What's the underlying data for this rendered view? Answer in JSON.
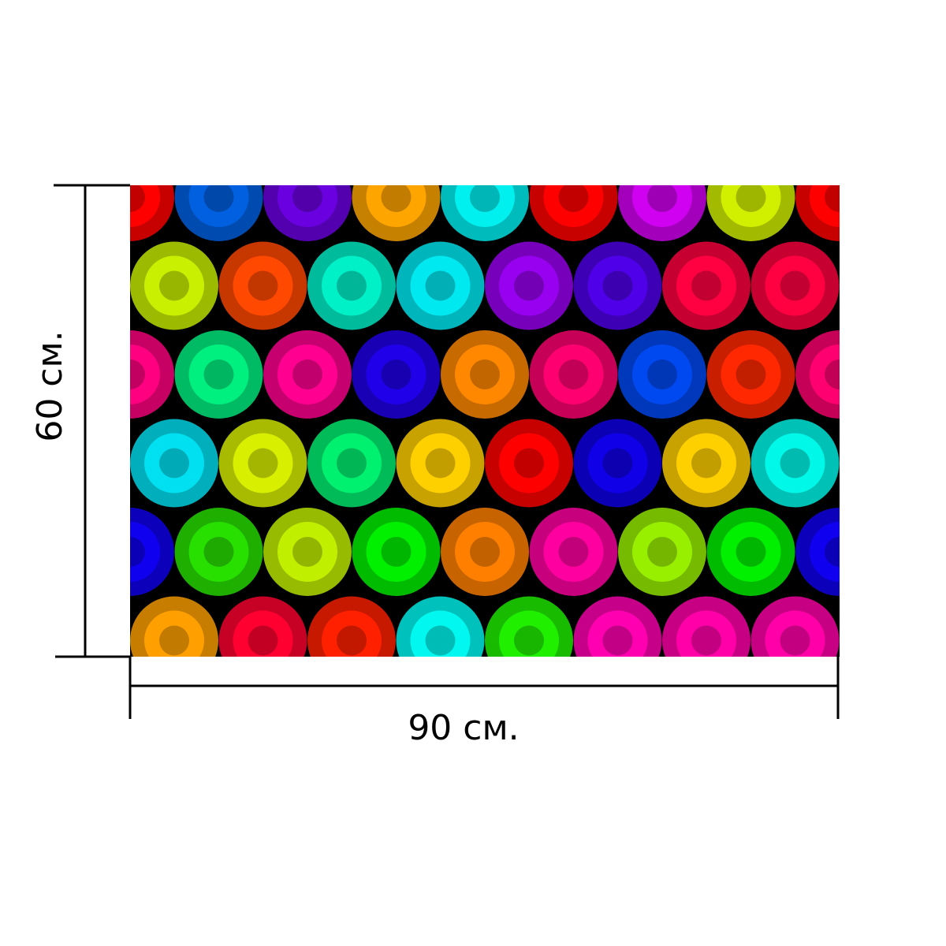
{
  "dimensions": {
    "width_label": "90 см.",
    "height_label": "60 см."
  },
  "pattern": {
    "background": "#000000",
    "rows": [
      [
        "#ff0000",
        "#0060e0",
        "#6a00e0",
        "#ffa500",
        "#00f0f0",
        "#ff0000",
        "#d000f0",
        "#d0f000",
        "#ff0000"
      ],
      [
        "#c8f000",
        "#ff4800",
        "#00f0c8",
        "#00e8f0",
        "#9800f0",
        "#5000e8",
        "#ff0040",
        "#ff0040"
      ],
      [
        "#ff0080",
        "#00f080",
        "#ff0090",
        "#2000e8",
        "#ff8800",
        "#ff0070",
        "#0048f0",
        "#ff2800",
        "#ff0070"
      ],
      [
        "#00e0f0",
        "#d8f000",
        "#00f070",
        "#ffd000",
        "#ff0000",
        "#1000e8",
        "#ffd000",
        "#00f8e8"
      ],
      [
        "#1000f0",
        "#28e000",
        "#c0f000",
        "#00f000",
        "#ff8000",
        "#ff00a0",
        "#98f000",
        "#00f000",
        "#1000f0"
      ],
      [
        "#ffa000",
        "#ff0030",
        "#ff2000",
        "#00f8f0",
        "#20f000",
        "#ff00b0",
        "#ff00a8",
        "#ff00a8"
      ]
    ]
  }
}
